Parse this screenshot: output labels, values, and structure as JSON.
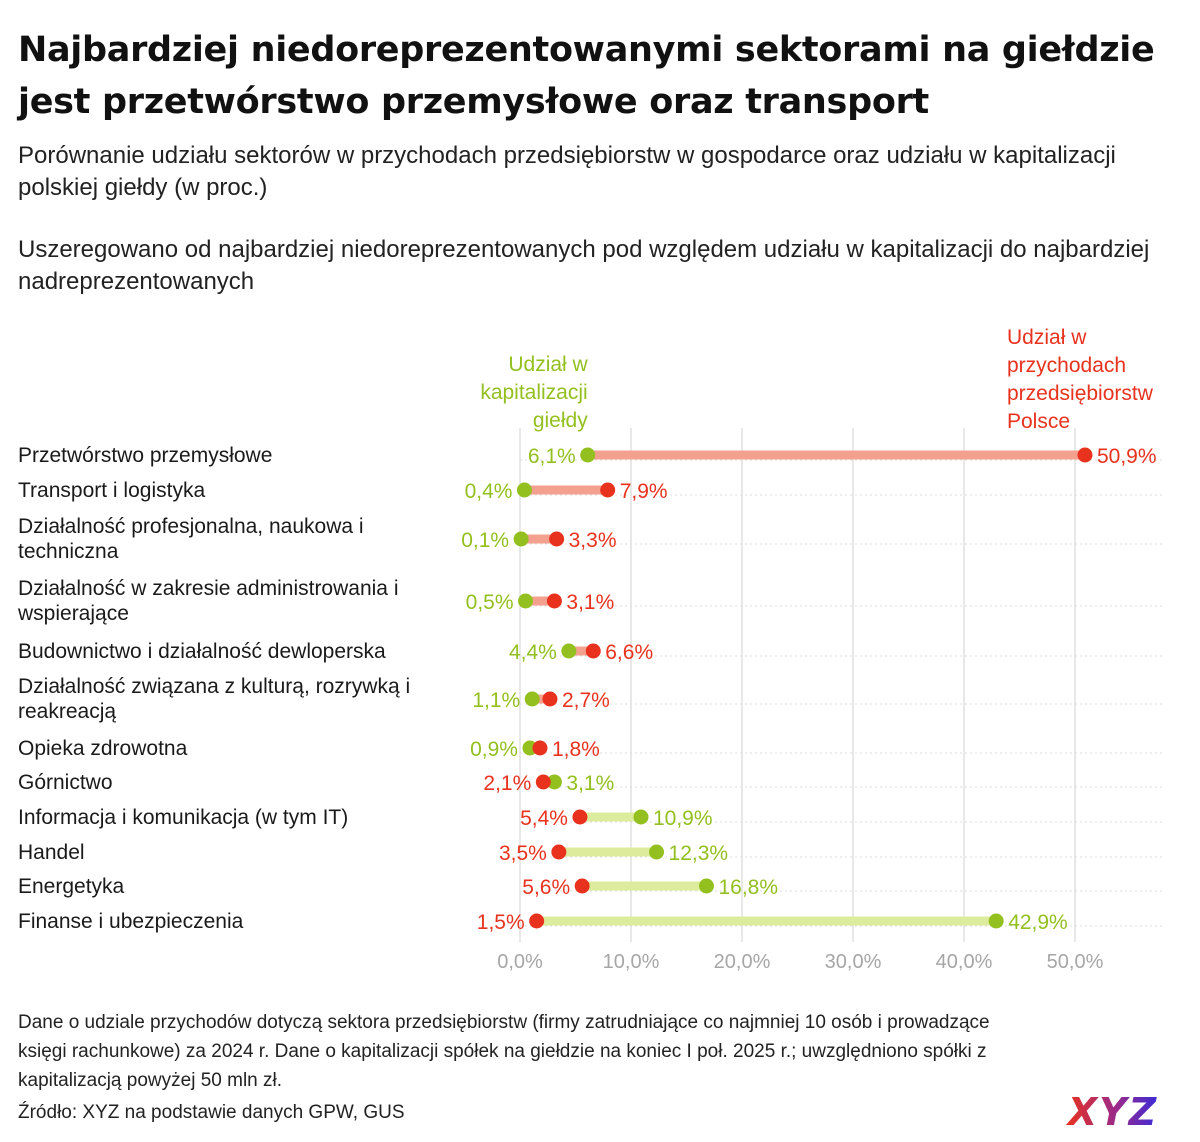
{
  "title_line1": "Najbardziej niedoreprezentowanymi sektorami na giełdzie",
  "title_line2": "jest przetwórstwo przemysłowe oraz transport",
  "subtitle": "Porównanie udziału sektorów w przychodach przedsiębiorstw w gospodarce oraz udziału w kapitalizacji polskiej giełdy (w proc.)",
  "note": "Uszeregowano od najbardziej niedoreprezentowanych pod względem udziału w kapitalizacji do najbardziej nadreprezentowanych",
  "footnote": "Dane o udziale przychodów dotyczą sektora przedsiębiorstw (firmy zatrudniające co najmniej 10 osób i prowadzące księgi rachunkowe) za 2024 r. Dane o kapitalizacji spółek na giełdzie na koniec I poł. 2025 r.; uwzględniono spółki z kapitalizacją powyżej 50 mln zł.",
  "source": "Źródło: XYZ na podstawie danych GPW, GUS",
  "logo_text": "XYZ",
  "colors": {
    "market": "#93c01f",
    "market_light": "#dcec9c",
    "revenue": "#e8321e",
    "revenue_light": "#f4a08f",
    "grid": "#d0d0d0",
    "tick": "#a6a6a6"
  },
  "chart_data": {
    "type": "dumbbell",
    "xlim": [
      0,
      55
    ],
    "xticks": [
      "0,0%",
      "10,0%",
      "20,0%",
      "30,0%",
      "40,0%",
      "50,0%"
    ],
    "xtick_values": [
      0,
      10,
      20,
      30,
      40,
      50
    ],
    "series": [
      {
        "key": "market",
        "name_lines": [
          "Udział w",
          "kapitalizacji",
          "giełdy"
        ]
      },
      {
        "key": "revenue",
        "name_lines": [
          "Udział w",
          "przychodach",
          "przedsiębiorstw",
          "Polsce"
        ]
      }
    ],
    "categories": [
      {
        "name_lines": [
          "Przetwórstwo przemysłowe"
        ],
        "market": 6.1,
        "market_label": "6,1%",
        "revenue": 50.9,
        "revenue_label": "50,9%"
      },
      {
        "name_lines": [
          "Transport i logistyka"
        ],
        "market": 0.4,
        "market_label": "0,4%",
        "revenue": 7.9,
        "revenue_label": "7,9%"
      },
      {
        "name_lines": [
          "Działalność profesjonalna, naukowa i",
          "techniczna"
        ],
        "market": 0.1,
        "market_label": "0,1%",
        "revenue": 3.3,
        "revenue_label": "3,3%"
      },
      {
        "name_lines": [
          "Działalność w zakresie administrowania i",
          "wspierające"
        ],
        "market": 0.5,
        "market_label": "0,5%",
        "revenue": 3.1,
        "revenue_label": "3,1%"
      },
      {
        "name_lines": [
          "Budownictwo i działalność dewloperska"
        ],
        "market": 4.4,
        "market_label": "4,4%",
        "revenue": 6.6,
        "revenue_label": "6,6%"
      },
      {
        "name_lines": [
          "Działalność związana z kulturą, rozrywką i",
          "reakreacją"
        ],
        "market": 1.1,
        "market_label": "1,1%",
        "revenue": 2.7,
        "revenue_label": "2,7%"
      },
      {
        "name_lines": [
          "Opieka zdrowotna"
        ],
        "market": 0.9,
        "market_label": "0,9%",
        "revenue": 1.8,
        "revenue_label": "1,8%"
      },
      {
        "name_lines": [
          "Górnictwo"
        ],
        "market": 3.1,
        "market_label": "3,1%",
        "revenue": 2.1,
        "revenue_label": "2,1%"
      },
      {
        "name_lines": [
          "Informacja i komunikacja (w tym IT)"
        ],
        "market": 10.9,
        "market_label": "10,9%",
        "revenue": 5.4,
        "revenue_label": "5,4%"
      },
      {
        "name_lines": [
          "Handel"
        ],
        "market": 12.3,
        "market_label": "12,3%",
        "revenue": 3.5,
        "revenue_label": "3,5%"
      },
      {
        "name_lines": [
          "Energetyka"
        ],
        "market": 16.8,
        "market_label": "16,8%",
        "revenue": 5.6,
        "revenue_label": "5,6%"
      },
      {
        "name_lines": [
          "Finanse i ubezpieczenia"
        ],
        "market": 42.9,
        "market_label": "42,9%",
        "revenue": 1.5,
        "revenue_label": "1,5%"
      }
    ]
  }
}
